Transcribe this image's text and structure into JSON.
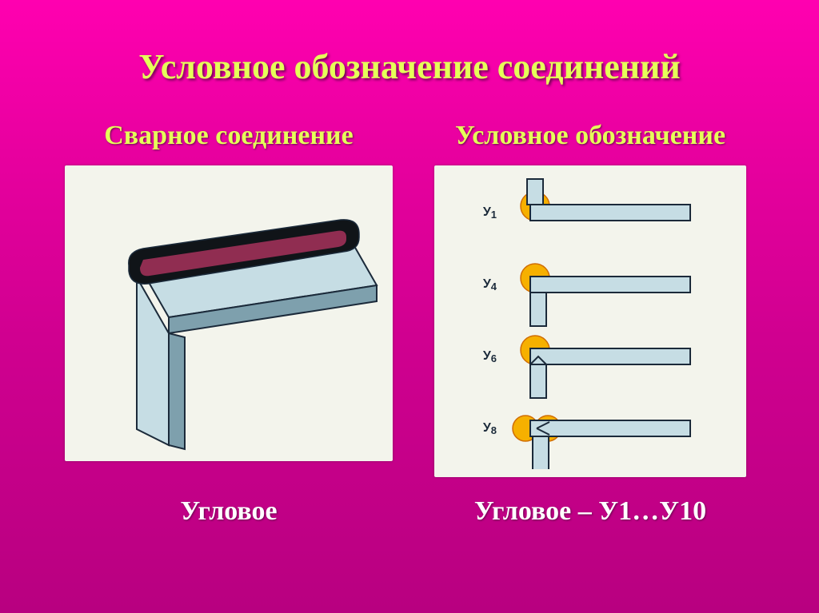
{
  "title": "Условное обозначение соединений",
  "left": {
    "heading": "Сварное соединение",
    "caption": "Угловое",
    "panel_bg": "#f3f4ec",
    "plate_fill": "#c6dde4",
    "plate_stroke": "#1b2a3a",
    "weld_body": "#101418",
    "weld_highlight": "#c8376a",
    "shadow": "#7ea0ad"
  },
  "right": {
    "heading": "Условное обозначение",
    "caption": "Угловое – У1…У10",
    "panel_bg": "#f3f4ec",
    "item_fill": "#c6dde4",
    "item_stroke": "#1b2a3a",
    "weld_fill": "#f6b000",
    "weld_stroke": "#d06d00",
    "label_color": "#1b2a3a",
    "label_fontsize": 16,
    "items": [
      {
        "code": "У1",
        "vertical_below": false,
        "notch": "none"
      },
      {
        "code": "У4",
        "vertical_below": true,
        "notch": "none"
      },
      {
        "code": "У6",
        "vertical_below": true,
        "notch": "single"
      },
      {
        "code": "У8",
        "vertical_below": true,
        "notch": "double"
      }
    ]
  },
  "colors": {
    "bg_top": "#ff00b0",
    "bg_bottom": "#b80080",
    "accent_text": "#e6ff59",
    "white": "#ffffff"
  }
}
